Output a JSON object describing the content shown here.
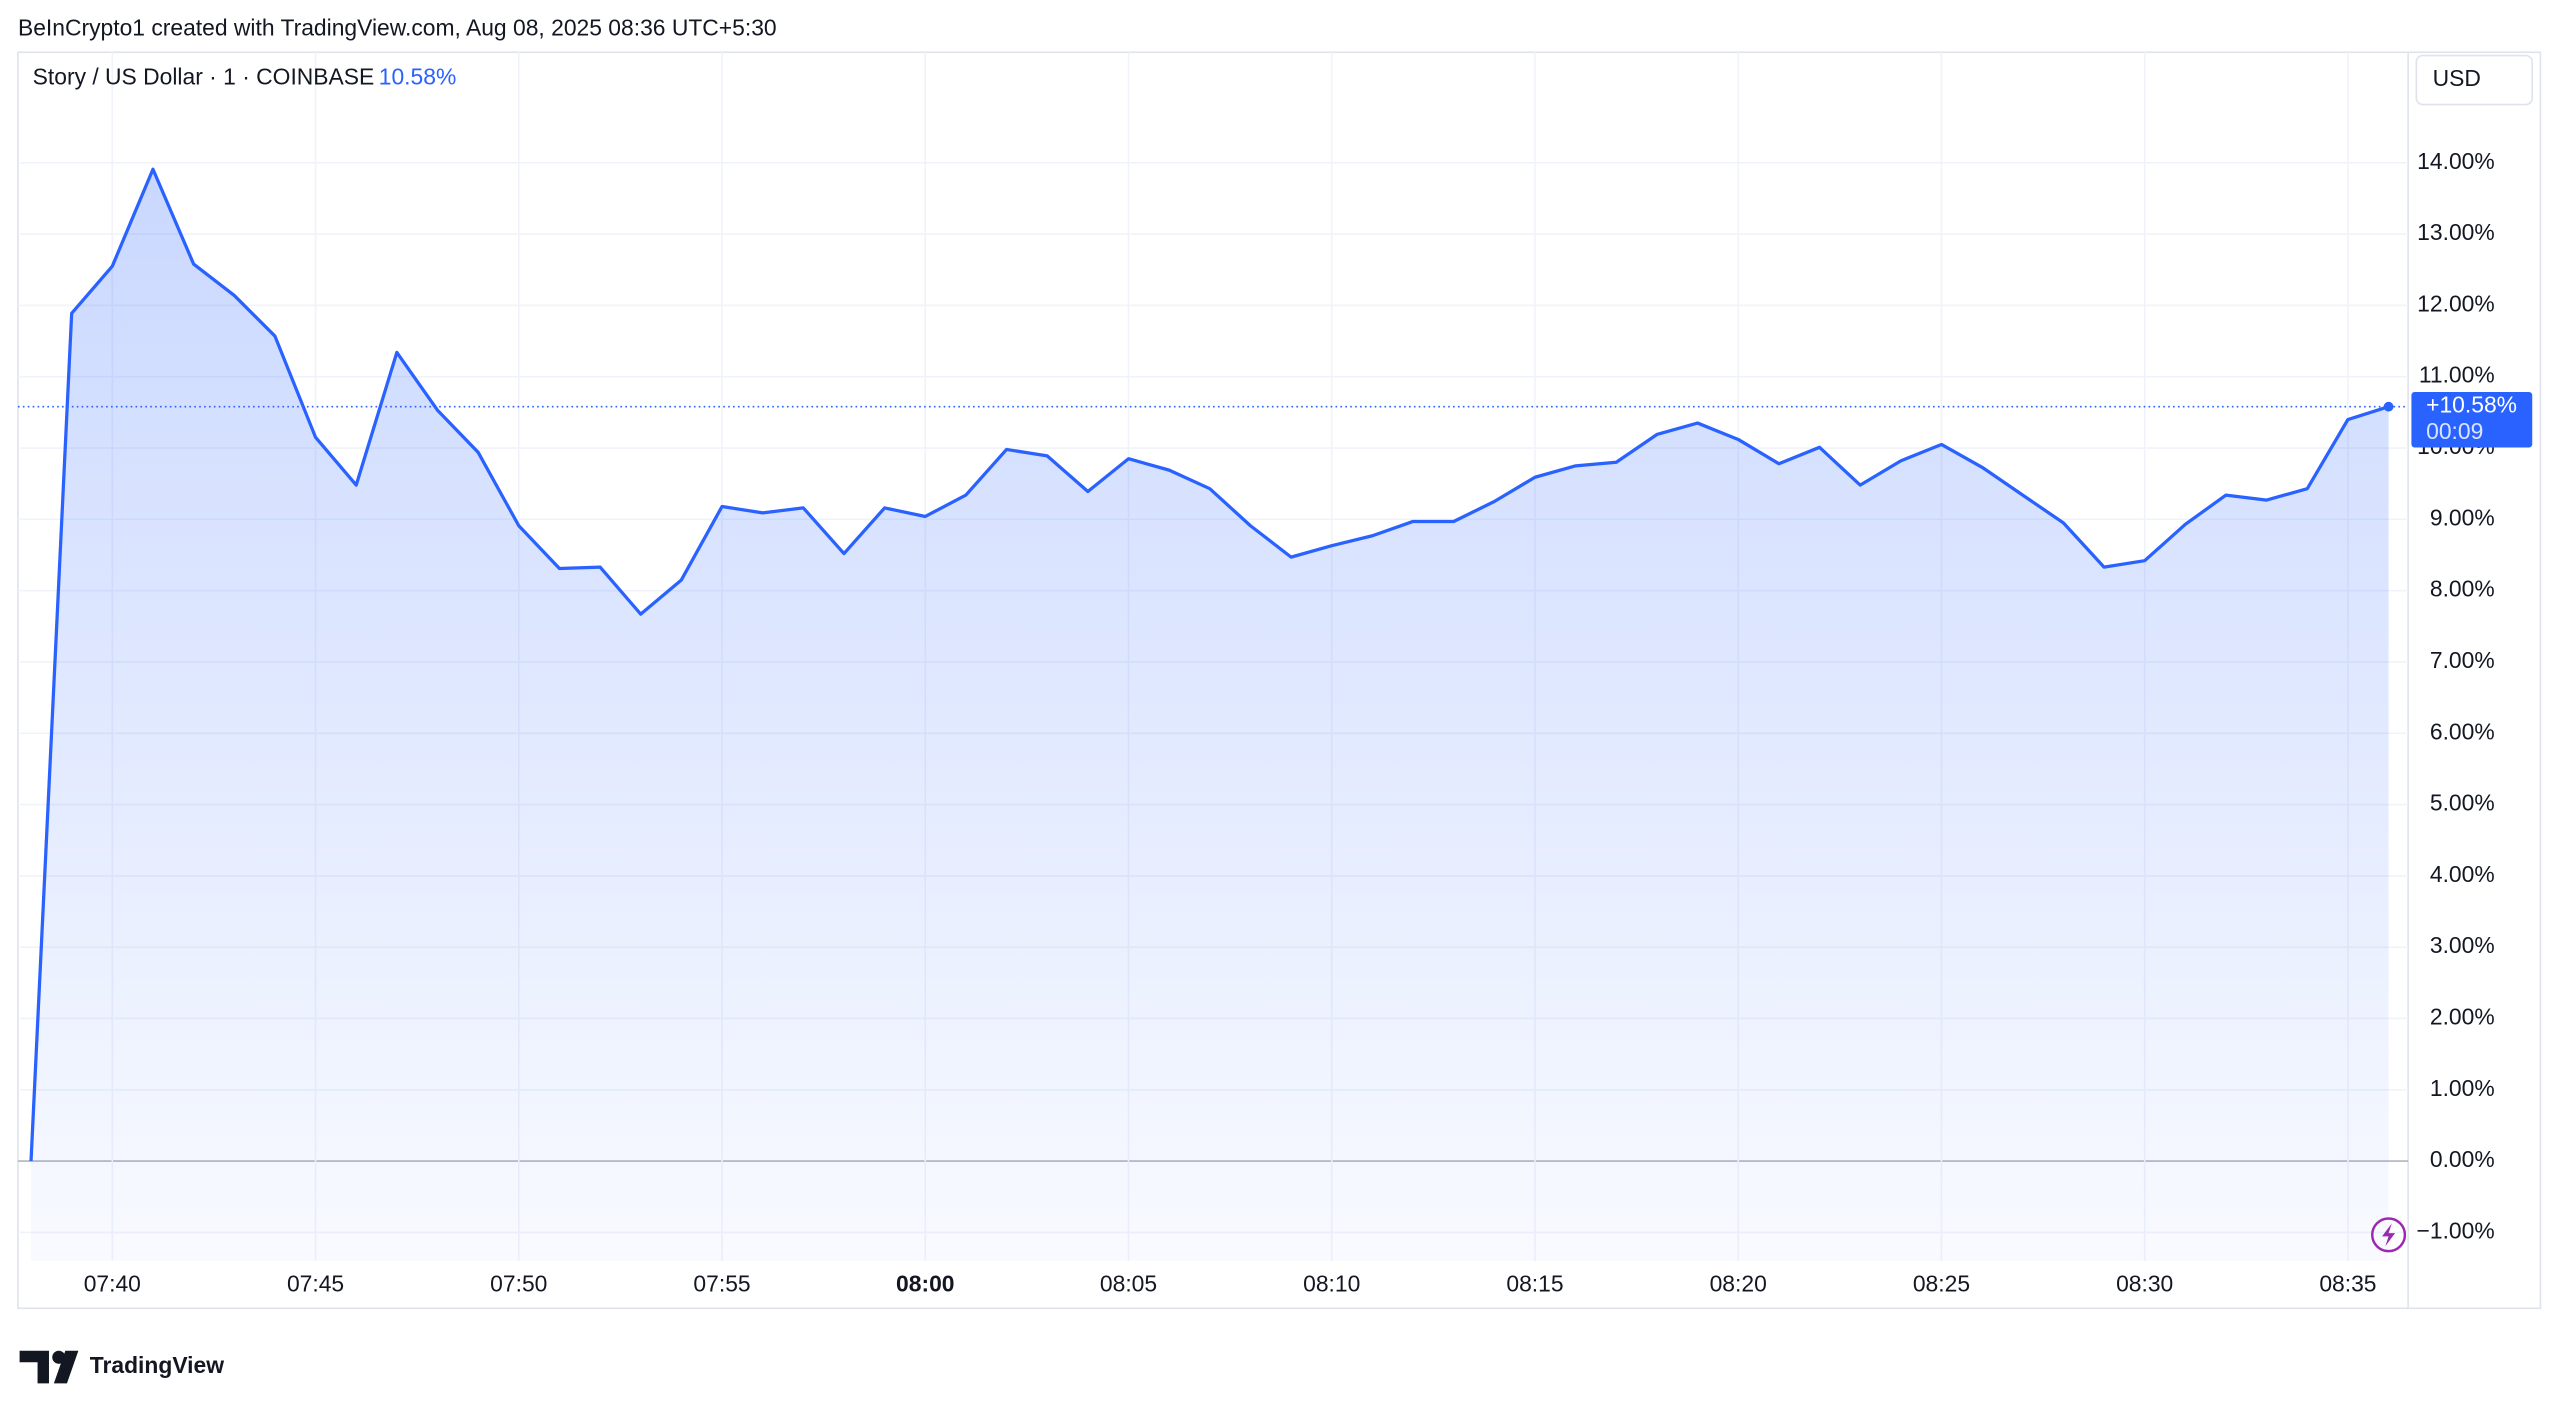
{
  "header": "BeInCrypto1 created with TradingView.com, Aug 08, 2025 08:36 UTC+5:30",
  "chart_data": {
    "type": "line",
    "title": "Story / US Dollar · 1 · COINBASE",
    "currency": "USD",
    "current": {
      "label": "10.58%",
      "badge": "+10.58%",
      "countdown": "00:09"
    },
    "x": [
      "07:38",
      "07:39",
      "07:40",
      "07:41",
      "07:42",
      "07:43",
      "07:44",
      "07:45",
      "07:46",
      "07:47",
      "07:48",
      "07:49",
      "07:50",
      "07:51",
      "07:52",
      "07:53",
      "07:54",
      "07:55",
      "07:56",
      "07:57",
      "07:58",
      "07:59",
      "08:00",
      "08:01",
      "08:02",
      "08:03",
      "08:04",
      "08:05",
      "08:06",
      "08:07",
      "08:08",
      "08:09",
      "08:10",
      "08:11",
      "08:12",
      "08:13",
      "08:14",
      "08:15",
      "08:16",
      "08:17",
      "08:18",
      "08:19",
      "08:20",
      "08:21",
      "08:22",
      "08:23",
      "08:24",
      "08:25",
      "08:26",
      "08:27",
      "08:28",
      "08:29",
      "08:30",
      "08:31",
      "08:32",
      "08:33",
      "08:34",
      "08:35",
      "08:36"
    ],
    "series": [
      {
        "name": "Story / US Dollar",
        "color": "#2962ff",
        "values": [
          0.0,
          11.89,
          12.55,
          13.91,
          12.58,
          12.14,
          11.57,
          10.15,
          9.48,
          11.34,
          10.53,
          9.94,
          8.91,
          8.31,
          8.33,
          7.67,
          8.15,
          9.18,
          9.09,
          9.16,
          8.52,
          9.16,
          9.04,
          9.34,
          9.98,
          9.89,
          9.39,
          9.85,
          9.69,
          9.43,
          8.91,
          8.47,
          8.63,
          8.77,
          8.97,
          8.97,
          9.25,
          9.59,
          9.75,
          9.8,
          10.19,
          10.35,
          10.12,
          9.78,
          10.01,
          9.48,
          9.82,
          10.05,
          9.73,
          9.34,
          8.95,
          8.33,
          8.42,
          8.93,
          9.34,
          9.27,
          9.43,
          10.4,
          10.58
        ]
      }
    ],
    "xlim": [
      "07:38",
      "08:36"
    ],
    "xticks": [
      "07:40",
      "07:45",
      "07:50",
      "07:55",
      "08:00",
      "08:05",
      "08:10",
      "08:15",
      "08:20",
      "08:25",
      "08:30",
      "08:35"
    ],
    "ylim": [
      -1.4,
      15.55
    ],
    "yticks": [
      {
        "value": -1,
        "label": "−1.00%"
      },
      {
        "value": 0,
        "label": "0.00%"
      },
      {
        "value": 1,
        "label": "1.00%"
      },
      {
        "value": 2,
        "label": "2.00%"
      },
      {
        "value": 3,
        "label": "3.00%"
      },
      {
        "value": 4,
        "label": "4.00%"
      },
      {
        "value": 5,
        "label": "5.00%"
      },
      {
        "value": 6,
        "label": "6.00%"
      },
      {
        "value": 7,
        "label": "7.00%"
      },
      {
        "value": 8,
        "label": "8.00%"
      },
      {
        "value": 9,
        "label": "9.00%"
      },
      {
        "value": 10,
        "label": "10.00%"
      },
      {
        "value": 11,
        "label": "11.00%"
      },
      {
        "value": 12,
        "label": "12.00%"
      },
      {
        "value": 13,
        "label": "13.00%"
      },
      {
        "value": 14,
        "label": "14.00%"
      }
    ],
    "grid": true
  },
  "footer": {
    "logo": "TradingView"
  }
}
